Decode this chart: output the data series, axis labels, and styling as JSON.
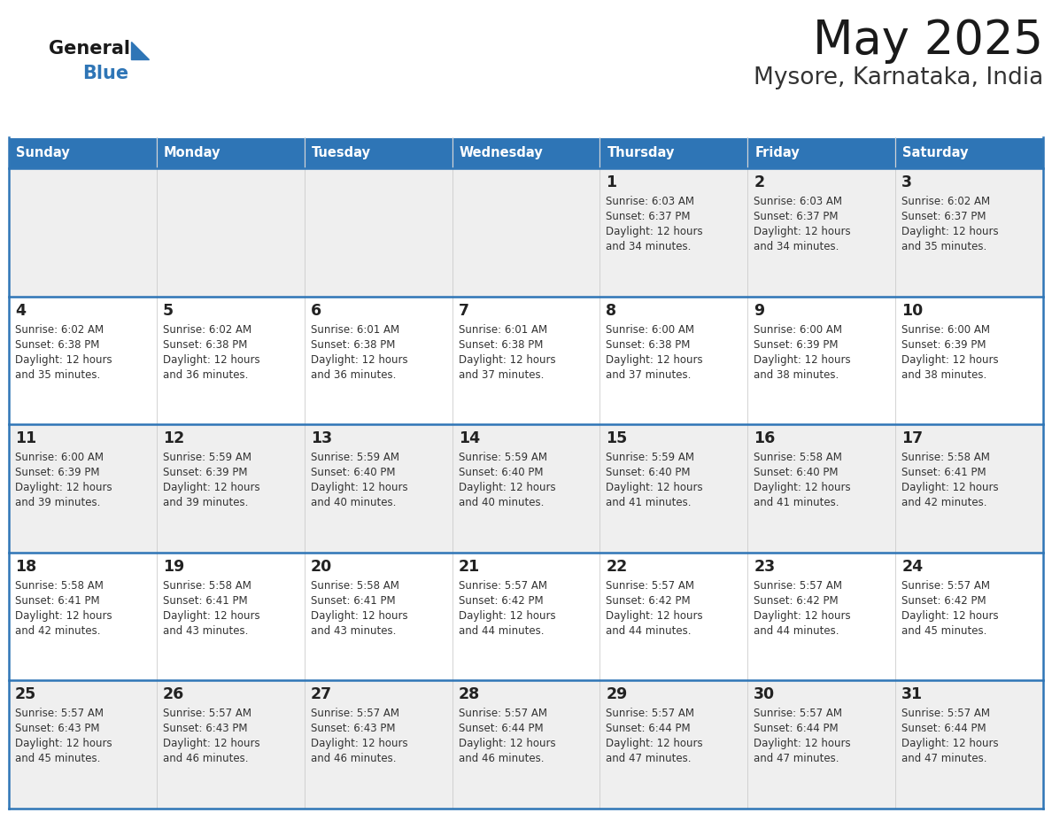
{
  "title": "May 2025",
  "subtitle": "Mysore, Karnataka, India",
  "header_bg": "#2E75B6",
  "header_text_color": "#FFFFFF",
  "days_of_week": [
    "Sunday",
    "Monday",
    "Tuesday",
    "Wednesday",
    "Thursday",
    "Friday",
    "Saturday"
  ],
  "row_bg_colors": [
    "#EFEFEF",
    "#FFFFFF",
    "#EFEFEF",
    "#FFFFFF",
    "#EFEFEF"
  ],
  "cell_border_color": "#2E75B6",
  "day_number_color": "#222222",
  "info_text_color": "#333333",
  "calendar_data": [
    [
      null,
      null,
      null,
      null,
      {
        "day": 1,
        "sunrise": "6:03 AM",
        "sunset": "6:37 PM",
        "daylight": "12 hours and 34 minutes."
      },
      {
        "day": 2,
        "sunrise": "6:03 AM",
        "sunset": "6:37 PM",
        "daylight": "12 hours and 34 minutes."
      },
      {
        "day": 3,
        "sunrise": "6:02 AM",
        "sunset": "6:37 PM",
        "daylight": "12 hours and 35 minutes."
      }
    ],
    [
      {
        "day": 4,
        "sunrise": "6:02 AM",
        "sunset": "6:38 PM",
        "daylight": "12 hours and 35 minutes."
      },
      {
        "day": 5,
        "sunrise": "6:02 AM",
        "sunset": "6:38 PM",
        "daylight": "12 hours and 36 minutes."
      },
      {
        "day": 6,
        "sunrise": "6:01 AM",
        "sunset": "6:38 PM",
        "daylight": "12 hours and 36 minutes."
      },
      {
        "day": 7,
        "sunrise": "6:01 AM",
        "sunset": "6:38 PM",
        "daylight": "12 hours and 37 minutes."
      },
      {
        "day": 8,
        "sunrise": "6:00 AM",
        "sunset": "6:38 PM",
        "daylight": "12 hours and 37 minutes."
      },
      {
        "day": 9,
        "sunrise": "6:00 AM",
        "sunset": "6:39 PM",
        "daylight": "12 hours and 38 minutes."
      },
      {
        "day": 10,
        "sunrise": "6:00 AM",
        "sunset": "6:39 PM",
        "daylight": "12 hours and 38 minutes."
      }
    ],
    [
      {
        "day": 11,
        "sunrise": "6:00 AM",
        "sunset": "6:39 PM",
        "daylight": "12 hours and 39 minutes."
      },
      {
        "day": 12,
        "sunrise": "5:59 AM",
        "sunset": "6:39 PM",
        "daylight": "12 hours and 39 minutes."
      },
      {
        "day": 13,
        "sunrise": "5:59 AM",
        "sunset": "6:40 PM",
        "daylight": "12 hours and 40 minutes."
      },
      {
        "day": 14,
        "sunrise": "5:59 AM",
        "sunset": "6:40 PM",
        "daylight": "12 hours and 40 minutes."
      },
      {
        "day": 15,
        "sunrise": "5:59 AM",
        "sunset": "6:40 PM",
        "daylight": "12 hours and 41 minutes."
      },
      {
        "day": 16,
        "sunrise": "5:58 AM",
        "sunset": "6:40 PM",
        "daylight": "12 hours and 41 minutes."
      },
      {
        "day": 17,
        "sunrise": "5:58 AM",
        "sunset": "6:41 PM",
        "daylight": "12 hours and 42 minutes."
      }
    ],
    [
      {
        "day": 18,
        "sunrise": "5:58 AM",
        "sunset": "6:41 PM",
        "daylight": "12 hours and 42 minutes."
      },
      {
        "day": 19,
        "sunrise": "5:58 AM",
        "sunset": "6:41 PM",
        "daylight": "12 hours and 43 minutes."
      },
      {
        "day": 20,
        "sunrise": "5:58 AM",
        "sunset": "6:41 PM",
        "daylight": "12 hours and 43 minutes."
      },
      {
        "day": 21,
        "sunrise": "5:57 AM",
        "sunset": "6:42 PM",
        "daylight": "12 hours and 44 minutes."
      },
      {
        "day": 22,
        "sunrise": "5:57 AM",
        "sunset": "6:42 PM",
        "daylight": "12 hours and 44 minutes."
      },
      {
        "day": 23,
        "sunrise": "5:57 AM",
        "sunset": "6:42 PM",
        "daylight": "12 hours and 44 minutes."
      },
      {
        "day": 24,
        "sunrise": "5:57 AM",
        "sunset": "6:42 PM",
        "daylight": "12 hours and 45 minutes."
      }
    ],
    [
      {
        "day": 25,
        "sunrise": "5:57 AM",
        "sunset": "6:43 PM",
        "daylight": "12 hours and 45 minutes."
      },
      {
        "day": 26,
        "sunrise": "5:57 AM",
        "sunset": "6:43 PM",
        "daylight": "12 hours and 46 minutes."
      },
      {
        "day": 27,
        "sunrise": "5:57 AM",
        "sunset": "6:43 PM",
        "daylight": "12 hours and 46 minutes."
      },
      {
        "day": 28,
        "sunrise": "5:57 AM",
        "sunset": "6:44 PM",
        "daylight": "12 hours and 46 minutes."
      },
      {
        "day": 29,
        "sunrise": "5:57 AM",
        "sunset": "6:44 PM",
        "daylight": "12 hours and 47 minutes."
      },
      {
        "day": 30,
        "sunrise": "5:57 AM",
        "sunset": "6:44 PM",
        "daylight": "12 hours and 47 minutes."
      },
      {
        "day": 31,
        "sunrise": "5:57 AM",
        "sunset": "6:44 PM",
        "daylight": "12 hours and 47 minutes."
      }
    ]
  ],
  "logo_general_color": "#1a1a1a",
  "logo_blue_color": "#2E75B6",
  "title_color": "#1a1a1a",
  "subtitle_color": "#333333",
  "fig_width": 11.88,
  "fig_height": 9.18,
  "dpi": 100
}
